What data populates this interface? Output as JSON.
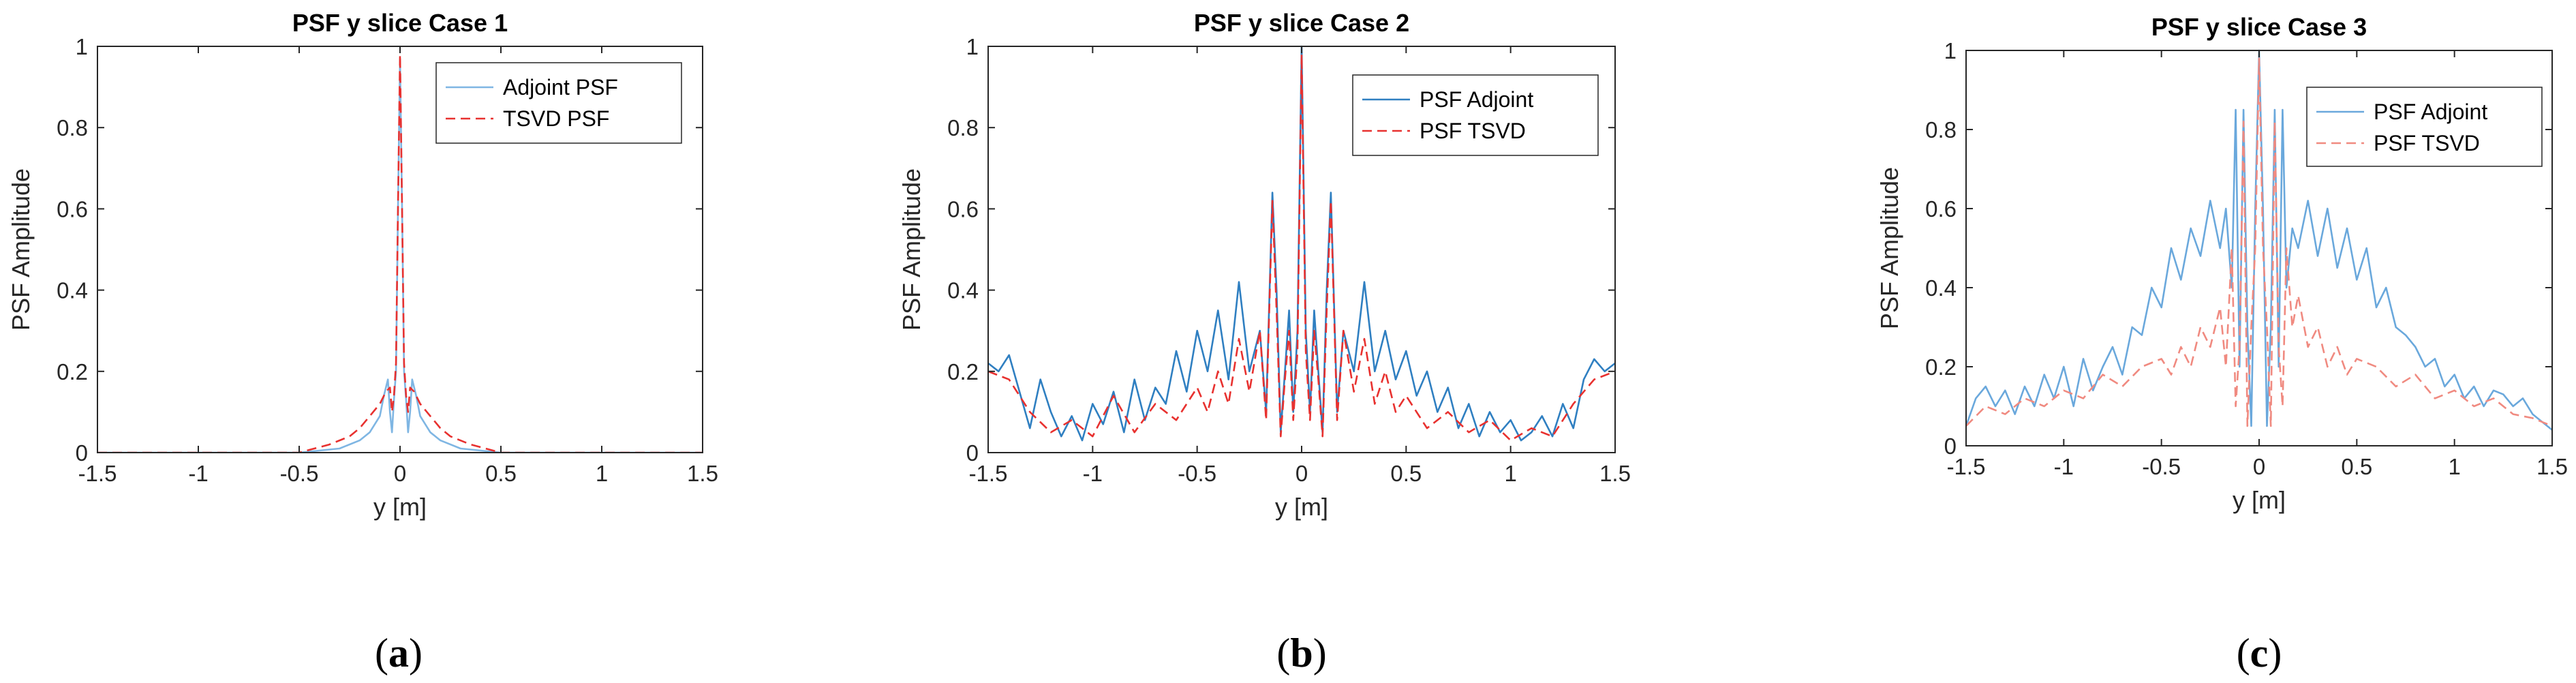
{
  "chart_data": [
    {
      "type": "line",
      "title": "PSF y slice Case 1",
      "xlabel": "y [m]",
      "ylabel": "PSF Amplitude",
      "xlim": [
        -1.5,
        1.5
      ],
      "ylim": [
        0,
        1
      ],
      "xticks": [
        "-1.5",
        "-1",
        "-0.5",
        "0",
        "0.5",
        "1",
        "1.5"
      ],
      "yticks": [
        "0",
        "0.2",
        "0.4",
        "0.6",
        "0.8",
        "1"
      ],
      "legend_position": "top-right",
      "caption": {
        "open": "(",
        "letter": "a",
        "close": ")"
      },
      "series": [
        {
          "name": "Adjoint PSF",
          "color": "#7fb6e3",
          "style": "solid",
          "x": [
            -1.5,
            -1.0,
            -0.5,
            -0.3,
            -0.2,
            -0.15,
            -0.1,
            -0.08,
            -0.06,
            -0.05,
            -0.04,
            -0.03,
            -0.02,
            -0.01,
            0.0,
            0.01,
            0.02,
            0.03,
            0.04,
            0.05,
            0.06,
            0.08,
            0.1,
            0.15,
            0.2,
            0.3,
            0.5,
            1.0,
            1.5
          ],
          "y": [
            0.0,
            0.0,
            0.0,
            0.01,
            0.03,
            0.05,
            0.09,
            0.14,
            0.18,
            0.1,
            0.05,
            0.13,
            0.2,
            0.6,
            0.97,
            0.6,
            0.2,
            0.13,
            0.05,
            0.1,
            0.18,
            0.14,
            0.09,
            0.05,
            0.03,
            0.01,
            0.0,
            0.0,
            0.0
          ]
        },
        {
          "name": "TSVD PSF",
          "color": "#e8312f",
          "style": "dashed",
          "x": [
            -1.5,
            -1.0,
            -0.5,
            -0.35,
            -0.25,
            -0.2,
            -0.15,
            -0.1,
            -0.07,
            -0.05,
            -0.04,
            -0.03,
            -0.02,
            -0.01,
            0.0,
            0.01,
            0.02,
            0.03,
            0.04,
            0.05,
            0.07,
            0.1,
            0.15,
            0.2,
            0.25,
            0.35,
            0.5,
            1.0,
            1.5
          ],
          "y": [
            0.0,
            0.0,
            0.0,
            0.02,
            0.04,
            0.06,
            0.09,
            0.12,
            0.15,
            0.16,
            0.1,
            0.14,
            0.22,
            0.6,
            0.98,
            0.6,
            0.22,
            0.14,
            0.1,
            0.16,
            0.15,
            0.12,
            0.09,
            0.06,
            0.04,
            0.02,
            0.0,
            0.0,
            0.0
          ]
        }
      ]
    },
    {
      "type": "line",
      "title": "PSF y slice Case 2",
      "xlabel": "y [m]",
      "ylabel": "PSF Amplitude",
      "xlim": [
        -1.5,
        1.5
      ],
      "ylim": [
        0,
        1
      ],
      "xticks": [
        "-1.5",
        "-1",
        "-0.5",
        "0",
        "0.5",
        "1",
        "1.5"
      ],
      "yticks": [
        "0",
        "0.2",
        "0.4",
        "0.6",
        "0.8",
        "1"
      ],
      "legend_position": "top-right",
      "caption": {
        "open": "(",
        "letter": "b",
        "close": ")"
      },
      "series": [
        {
          "name": "PSF Adjoint",
          "color": "#2f7fc1",
          "style": "solid",
          "x": [
            -1.5,
            -1.45,
            -1.4,
            -1.35,
            -1.3,
            -1.25,
            -1.2,
            -1.15,
            -1.1,
            -1.05,
            -1.0,
            -0.95,
            -0.9,
            -0.85,
            -0.8,
            -0.75,
            -0.7,
            -0.65,
            -0.6,
            -0.55,
            -0.5,
            -0.45,
            -0.4,
            -0.35,
            -0.3,
            -0.25,
            -0.2,
            -0.17,
            -0.14,
            -0.12,
            -0.1,
            -0.08,
            -0.06,
            -0.04,
            -0.02,
            0.0,
            0.02,
            0.04,
            0.06,
            0.08,
            0.1,
            0.12,
            0.14,
            0.17,
            0.2,
            0.25,
            0.3,
            0.35,
            0.4,
            0.45,
            0.5,
            0.55,
            0.6,
            0.65,
            0.7,
            0.75,
            0.8,
            0.85,
            0.9,
            0.95,
            1.0,
            1.05,
            1.1,
            1.15,
            1.2,
            1.25,
            1.3,
            1.35,
            1.4,
            1.45,
            1.5
          ],
          "y": [
            0.22,
            0.2,
            0.24,
            0.15,
            0.06,
            0.18,
            0.1,
            0.04,
            0.09,
            0.03,
            0.12,
            0.07,
            0.15,
            0.05,
            0.18,
            0.08,
            0.16,
            0.12,
            0.25,
            0.15,
            0.3,
            0.2,
            0.35,
            0.18,
            0.42,
            0.2,
            0.3,
            0.1,
            0.64,
            0.4,
            0.05,
            0.2,
            0.35,
            0.1,
            0.3,
            1.0,
            0.3,
            0.1,
            0.35,
            0.2,
            0.05,
            0.4,
            0.64,
            0.1,
            0.3,
            0.2,
            0.42,
            0.2,
            0.3,
            0.18,
            0.25,
            0.14,
            0.2,
            0.1,
            0.16,
            0.06,
            0.12,
            0.04,
            0.1,
            0.05,
            0.08,
            0.03,
            0.05,
            0.09,
            0.04,
            0.12,
            0.06,
            0.18,
            0.23,
            0.2,
            0.22
          ]
        },
        {
          "name": "PSF TSVD",
          "color": "#e8312f",
          "style": "dashed",
          "x": [
            -1.5,
            -1.4,
            -1.3,
            -1.2,
            -1.1,
            -1.0,
            -0.9,
            -0.8,
            -0.7,
            -0.6,
            -0.5,
            -0.45,
            -0.4,
            -0.35,
            -0.3,
            -0.25,
            -0.2,
            -0.17,
            -0.14,
            -0.12,
            -0.1,
            -0.08,
            -0.06,
            -0.04,
            -0.02,
            0.0,
            0.02,
            0.04,
            0.06,
            0.08,
            0.1,
            0.12,
            0.14,
            0.17,
            0.2,
            0.25,
            0.3,
            0.35,
            0.4,
            0.45,
            0.5,
            0.6,
            0.7,
            0.8,
            0.9,
            1.0,
            1.1,
            1.2,
            1.3,
            1.4,
            1.5
          ],
          "y": [
            0.2,
            0.18,
            0.1,
            0.05,
            0.08,
            0.04,
            0.14,
            0.05,
            0.12,
            0.08,
            0.16,
            0.1,
            0.2,
            0.12,
            0.28,
            0.15,
            0.3,
            0.08,
            0.62,
            0.35,
            0.04,
            0.18,
            0.3,
            0.08,
            0.25,
            0.98,
            0.25,
            0.08,
            0.3,
            0.18,
            0.04,
            0.35,
            0.62,
            0.08,
            0.3,
            0.15,
            0.28,
            0.12,
            0.2,
            0.1,
            0.14,
            0.06,
            0.1,
            0.05,
            0.08,
            0.03,
            0.06,
            0.04,
            0.12,
            0.18,
            0.2
          ]
        }
      ]
    },
    {
      "type": "line",
      "title": "PSF y slice Case 3",
      "xlabel": "y [m]",
      "ylabel": "PSF Amplitude",
      "xlim": [
        -1.5,
        1.5
      ],
      "ylim": [
        0,
        1
      ],
      "xticks": [
        "-1.5",
        "-1",
        "-0.5",
        "0",
        "0.5",
        "1",
        "1.5"
      ],
      "yticks": [
        "0",
        "0.2",
        "0.4",
        "0.6",
        "0.8",
        "1"
      ],
      "legend_position": "top-right",
      "caption": {
        "open": "(",
        "letter": "c",
        "close": ")"
      },
      "series": [
        {
          "name": "PSF Adjoint",
          "color": "#6aa8dc",
          "style": "solid",
          "x": [
            -1.5,
            -1.45,
            -1.4,
            -1.35,
            -1.3,
            -1.25,
            -1.2,
            -1.15,
            -1.1,
            -1.05,
            -1.0,
            -0.95,
            -0.9,
            -0.85,
            -0.8,
            -0.75,
            -0.7,
            -0.65,
            -0.6,
            -0.55,
            -0.5,
            -0.45,
            -0.4,
            -0.35,
            -0.3,
            -0.25,
            -0.2,
            -0.17,
            -0.14,
            -0.12,
            -0.1,
            -0.08,
            -0.06,
            -0.04,
            -0.02,
            0.0,
            0.02,
            0.04,
            0.06,
            0.08,
            0.1,
            0.12,
            0.14,
            0.17,
            0.2,
            0.25,
            0.3,
            0.35,
            0.4,
            0.45,
            0.5,
            0.55,
            0.6,
            0.65,
            0.7,
            0.75,
            0.8,
            0.85,
            0.9,
            0.95,
            1.0,
            1.05,
            1.1,
            1.15,
            1.2,
            1.25,
            1.3,
            1.35,
            1.4,
            1.45,
            1.5
          ],
          "y": [
            0.05,
            0.12,
            0.15,
            0.1,
            0.14,
            0.08,
            0.15,
            0.1,
            0.18,
            0.12,
            0.2,
            0.1,
            0.22,
            0.14,
            0.2,
            0.25,
            0.18,
            0.3,
            0.28,
            0.4,
            0.35,
            0.5,
            0.42,
            0.55,
            0.48,
            0.62,
            0.5,
            0.6,
            0.4,
            0.85,
            0.2,
            0.85,
            0.3,
            0.05,
            0.6,
            1.0,
            0.6,
            0.05,
            0.3,
            0.85,
            0.2,
            0.85,
            0.4,
            0.55,
            0.5,
            0.62,
            0.48,
            0.6,
            0.45,
            0.55,
            0.42,
            0.5,
            0.35,
            0.4,
            0.3,
            0.28,
            0.25,
            0.2,
            0.22,
            0.15,
            0.18,
            0.12,
            0.15,
            0.1,
            0.14,
            0.13,
            0.1,
            0.12,
            0.08,
            0.06,
            0.04
          ]
        },
        {
          "name": "PSF TSVD",
          "color": "#f08a80",
          "style": "dashed",
          "x": [
            -1.5,
            -1.4,
            -1.3,
            -1.2,
            -1.1,
            -1.0,
            -0.9,
            -0.8,
            -0.7,
            -0.6,
            -0.5,
            -0.45,
            -0.4,
            -0.35,
            -0.3,
            -0.25,
            -0.2,
            -0.17,
            -0.14,
            -0.12,
            -0.1,
            -0.08,
            -0.06,
            -0.04,
            -0.02,
            0.0,
            0.02,
            0.04,
            0.06,
            0.08,
            0.1,
            0.12,
            0.14,
            0.17,
            0.2,
            0.25,
            0.3,
            0.35,
            0.4,
            0.45,
            0.5,
            0.6,
            0.7,
            0.8,
            0.9,
            1.0,
            1.1,
            1.2,
            1.3,
            1.4,
            1.5
          ],
          "y": [
            0.05,
            0.1,
            0.08,
            0.12,
            0.1,
            0.14,
            0.12,
            0.18,
            0.15,
            0.2,
            0.22,
            0.18,
            0.25,
            0.2,
            0.3,
            0.25,
            0.35,
            0.2,
            0.5,
            0.1,
            0.25,
            0.82,
            0.05,
            0.3,
            0.5,
            0.98,
            0.5,
            0.3,
            0.05,
            0.82,
            0.25,
            0.1,
            0.5,
            0.3,
            0.38,
            0.25,
            0.3,
            0.2,
            0.25,
            0.18,
            0.22,
            0.2,
            0.15,
            0.18,
            0.12,
            0.14,
            0.1,
            0.12,
            0.08,
            0.07,
            0.05
          ]
        }
      ]
    }
  ]
}
